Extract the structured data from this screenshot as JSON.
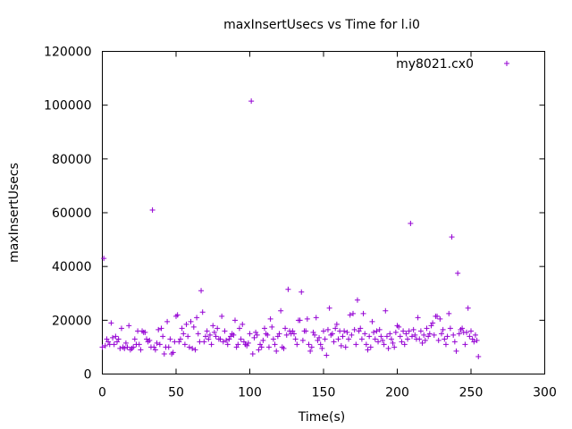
{
  "chart_data": {
    "type": "scatter",
    "title": "maxInsertUsecs vs Time for l.i0",
    "xlabel": "Time(s)",
    "ylabel": "maxInsertUsecs",
    "xlim": [
      0,
      300
    ],
    "ylim": [
      0,
      120000
    ],
    "xticks": [
      0,
      50,
      100,
      150,
      200,
      250,
      300
    ],
    "yticks": [
      0,
      20000,
      40000,
      60000,
      80000,
      100000,
      120000
    ],
    "xtick_labels": [
      "0",
      "50",
      "100",
      "150",
      "200",
      "250",
      "300"
    ],
    "ytick_labels": [
      "0",
      "20000",
      "40000",
      "60000",
      "80000",
      "100000",
      "120000"
    ],
    "grid": false,
    "legend_position": "top-right",
    "marker": "plus",
    "series": [
      {
        "name": "my8021.cx0",
        "color": "#9400d3",
        "x": [
          0,
          1,
          2,
          3,
          4,
          5,
          6,
          7,
          8,
          9,
          10,
          11,
          12,
          13,
          14,
          15,
          16,
          17,
          18,
          19,
          20,
          21,
          22,
          23,
          24,
          25,
          26,
          27,
          28,
          29,
          30,
          31,
          32,
          33,
          34,
          35,
          36,
          37,
          38,
          39,
          40,
          41,
          42,
          43,
          44,
          45,
          46,
          47,
          48,
          49,
          50,
          51,
          52,
          53,
          54,
          55,
          56,
          57,
          58,
          59,
          60,
          61,
          62,
          63,
          64,
          65,
          66,
          67,
          68,
          69,
          70,
          71,
          72,
          73,
          74,
          75,
          76,
          77,
          78,
          79,
          80,
          81,
          82,
          83,
          84,
          85,
          86,
          87,
          88,
          89,
          90,
          91,
          92,
          93,
          94,
          95,
          96,
          97,
          98,
          99,
          100,
          101,
          102,
          103,
          104,
          105,
          106,
          107,
          108,
          109,
          110,
          111,
          112,
          113,
          114,
          115,
          116,
          117,
          118,
          119,
          120,
          121,
          122,
          123,
          124,
          125,
          126,
          127,
          128,
          129,
          130,
          131,
          132,
          133,
          134,
          135,
          136,
          137,
          138,
          139,
          140,
          141,
          142,
          143,
          144,
          145,
          146,
          147,
          148,
          149,
          150,
          151,
          152,
          153,
          154,
          155,
          156,
          157,
          158,
          159,
          160,
          161,
          162,
          163,
          164,
          165,
          166,
          167,
          168,
          169,
          170,
          171,
          172,
          173,
          174,
          175,
          176,
          177,
          178,
          179,
          180,
          181,
          182,
          183,
          184,
          185,
          186,
          187,
          188,
          189,
          190,
          191,
          192,
          193,
          194,
          195,
          196,
          197,
          198,
          199,
          200,
          201,
          202,
          203,
          204,
          205,
          206,
          207,
          208,
          209,
          210,
          211,
          212,
          213,
          214,
          215,
          216,
          217,
          218,
          219,
          220,
          221,
          222,
          223,
          224,
          225,
          226,
          227,
          228,
          229,
          230,
          231,
          232,
          233,
          234,
          235,
          236,
          237,
          238,
          239,
          240,
          241,
          242,
          243,
          244,
          245,
          246,
          247,
          248,
          249,
          250,
          251,
          252,
          253,
          254,
          255
        ],
        "y": [
          10000,
          43000,
          10500,
          13000,
          12000,
          11000,
          19000,
          13500,
          11000,
          14000,
          12000,
          13000,
          9500,
          17000,
          10000,
          9500,
          11500,
          10000,
          18000,
          9000,
          9500,
          10000,
          13000,
          11000,
          16000,
          11000,
          9000,
          16000,
          15500,
          15500,
          13000,
          12000,
          12500,
          10000,
          61000,
          10000,
          9000,
          11500,
          16500,
          11000,
          17000,
          14000,
          7500,
          10000,
          19500,
          10000,
          13000,
          7500,
          8000,
          12000,
          21500,
          22000,
          12000,
          13000,
          17000,
          15000,
          11000,
          18500,
          14000,
          10000,
          19500,
          9500,
          17500,
          9000,
          21000,
          15000,
          12000,
          31000,
          23000,
          12000,
          14000,
          16000,
          13000,
          14500,
          11000,
          18000,
          15500,
          14000,
          17000,
          13000,
          13000,
          21500,
          12000,
          16000,
          12500,
          11000,
          13000,
          14000,
          15000,
          14500,
          20000,
          10000,
          11000,
          17000,
          13000,
          18500,
          12000,
          11000,
          10500,
          11500,
          15000,
          101500,
          7500,
          13500,
          15500,
          14500,
          9000,
          11000,
          10000,
          12500,
          17000,
          15000,
          14500,
          10000,
          20500,
          17500,
          13000,
          11000,
          8500,
          14000,
          15000,
          23500,
          10000,
          9500,
          17000,
          14500,
          31500,
          16000,
          15000,
          16000,
          15000,
          13000,
          11000,
          20000,
          20000,
          30500,
          12500,
          16000,
          16000,
          20500,
          11000,
          8500,
          10000,
          15500,
          14500,
          21000,
          12500,
          13500,
          11000,
          9500,
          16000,
          13000,
          7000,
          16500,
          24500,
          14500,
          15000,
          12000,
          17000,
          18500,
          13000,
          16000,
          10500,
          14000,
          16000,
          10000,
          15500,
          13000,
          22000,
          14500,
          22500,
          16500,
          11000,
          27500,
          16000,
          17000,
          13000,
          22500,
          15000,
          11000,
          9000,
          14000,
          10000,
          19500,
          15500,
          13000,
          16000,
          12000,
          16500,
          14000,
          12500,
          11000,
          23500,
          14000,
          9500,
          15000,
          13000,
          11500,
          10000,
          15500,
          18000,
          17500,
          14000,
          12000,
          16000,
          11000,
          15000,
          13000,
          16000,
          56000,
          14000,
          16500,
          14500,
          13000,
          21000,
          13000,
          16000,
          11500,
          14500,
          12500,
          17000,
          14000,
          15000,
          18000,
          19000,
          14500,
          21500,
          21500,
          12500,
          20500,
          15000,
          16500,
          13000,
          11000,
          14000,
          22500,
          17000,
          51000,
          14500,
          12000,
          8500,
          37500,
          15000,
          16500,
          17000,
          15500,
          11000,
          15500,
          24500,
          14000,
          16000,
          13000,
          12000,
          14500,
          12500,
          6500
        ]
      }
    ]
  }
}
